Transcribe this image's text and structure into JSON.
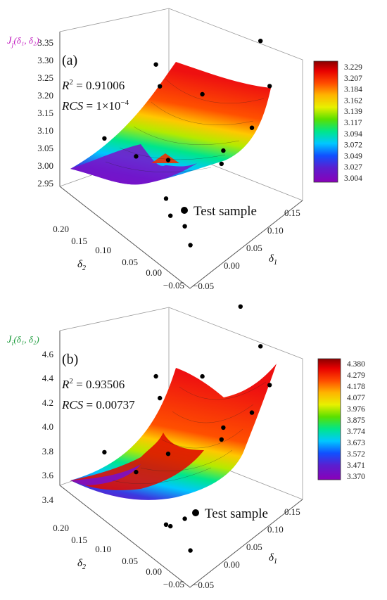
{
  "chart_data": [
    {
      "type": "surface3d",
      "panel_label": "(a)",
      "zlabel_main": "J",
      "zlabel_sub": "j",
      "zlabel_args": "(δ₁, δ₂)",
      "xlabel_main": "δ",
      "xlabel_sub": "1",
      "ylabel_main": "δ",
      "ylabel_sub": "2",
      "r2_label": "R",
      "r2_sup": "2",
      "r2_value": " = 0.91006",
      "rcs_label": "RCS",
      "rcs_value": " = 1×10",
      "rcs_exp": "−4",
      "z_ticks": [
        "3.35",
        "3.30",
        "3.25",
        "3.20",
        "3.15",
        "3.10",
        "3.05",
        "3.00",
        "2.95"
      ],
      "x_ticks": [
        "−0.05",
        "0.00",
        "0.05",
        "0.10",
        "0.15"
      ],
      "y_ticks": [
        "0.20",
        "0.15",
        "0.10",
        "0.05",
        "0.00",
        "−0.05"
      ],
      "colorbar_ticks": [
        "3.229",
        "3.207",
        "3.184",
        "3.162",
        "3.139",
        "3.117",
        "3.094",
        "3.072",
        "3.049",
        "3.027",
        "3.004"
      ],
      "legend": "Test sample",
      "zlim": [
        2.95,
        3.35
      ],
      "points": [
        {
          "d1": 0.13,
          "d2": 0.21,
          "z": 3.05
        },
        {
          "d1": 0.02,
          "d2": 0.19,
          "z": 3.005
        },
        {
          "d1": 0.03,
          "d2": 0.14,
          "z": 3.0
        },
        {
          "d1": 0.1,
          "d2": 0.17,
          "z": 3.07
        },
        {
          "d1": 0.05,
          "d2": 0.1,
          "z": 3.01
        },
        {
          "d1": 0.0,
          "d2": 0.05,
          "z": 3.02
        },
        {
          "d1": -0.02,
          "d2": 0.02,
          "z": 3.03
        },
        {
          "d1": 0.12,
          "d2": 0.11,
          "z": 3.09
        },
        {
          "d1": 0.08,
          "d2": 0.03,
          "z": 3.04
        },
        {
          "d1": -0.04,
          "d2": -0.04,
          "z": 3.04
        },
        {
          "d1": 0.16,
          "d2": 0.08,
          "z": 3.33
        },
        {
          "d1": 0.14,
          "d2": 0.02,
          "z": 3.3
        },
        {
          "d1": 0.11,
          "d2": -0.03,
          "z": 3.27
        },
        {
          "d1": 0.06,
          "d2": -0.05,
          "z": 3.24
        },
        {
          "d1": 0.0,
          "d2": -0.06,
          "z": 3.26
        },
        {
          "d1": -0.05,
          "d2": -0.04,
          "z": 3.1
        }
      ]
    },
    {
      "type": "surface3d",
      "panel_label": "(b)",
      "zlabel_main": "J",
      "zlabel_sub": "i",
      "zlabel_args": "(δ₁, δ₂)",
      "xlabel_main": "δ",
      "xlabel_sub": "1",
      "ylabel_main": "δ",
      "ylabel_sub": "2",
      "r2_label": "R",
      "r2_sup": "2",
      "r2_value": " = 0.93506",
      "rcs_label": "RCS",
      "rcs_value": " = 0.00737",
      "rcs_exp": "",
      "z_ticks": [
        "4.6",
        "4.4",
        "4.2",
        "4.0",
        "3.8",
        "3.6",
        "3.4"
      ],
      "x_ticks": [
        "−0.05",
        "0.00",
        "0.05",
        "0.10",
        "0.15"
      ],
      "y_ticks": [
        "0.20",
        "0.15",
        "0.10",
        "0.05",
        "0.00",
        "−0.05"
      ],
      "colorbar_ticks": [
        "4.380",
        "4.279",
        "4.178",
        "4.077",
        "3.976",
        "3.875",
        "3.774",
        "3.673",
        "3.572",
        "3.471",
        "3.370"
      ],
      "legend": "Test sample",
      "zlim": [
        3.4,
        4.6
      ],
      "points": [
        {
          "d1": 0.13,
          "d2": 0.21,
          "z": 3.6
        },
        {
          "d1": 0.02,
          "d2": 0.19,
          "z": 3.45
        },
        {
          "d1": 0.03,
          "d2": 0.14,
          "z": 3.42
        },
        {
          "d1": 0.1,
          "d2": 0.17,
          "z": 3.66
        },
        {
          "d1": 0.05,
          "d2": 0.1,
          "z": 3.62
        },
        {
          "d1": 0.0,
          "d2": 0.05,
          "z": 3.4
        },
        {
          "d1": 0.12,
          "d2": 0.11,
          "z": 3.95
        },
        {
          "d1": 0.08,
          "d2": 0.03,
          "z": 3.85
        },
        {
          "d1": -0.02,
          "d2": 0.02,
          "z": 3.55
        },
        {
          "d1": -0.04,
          "d2": -0.04,
          "z": 3.62
        },
        {
          "d1": 0.16,
          "d2": 0.08,
          "z": 4.45
        },
        {
          "d1": 0.14,
          "d2": 0.02,
          "z": 4.4
        },
        {
          "d1": 0.11,
          "d2": -0.03,
          "z": 4.36
        },
        {
          "d1": 0.06,
          "d2": -0.05,
          "z": 4.38
        },
        {
          "d1": 0.0,
          "d2": -0.06,
          "z": 4.5
        },
        {
          "d1": -0.05,
          "d2": -0.04,
          "z": 3.9
        }
      ]
    }
  ]
}
